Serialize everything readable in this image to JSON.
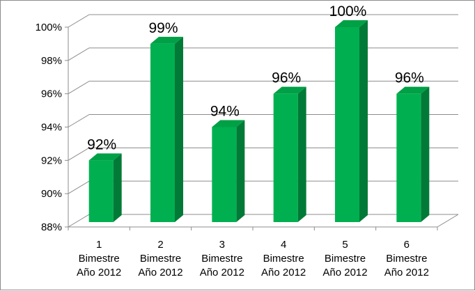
{
  "chart_data": {
    "type": "bar",
    "title": "",
    "xlabel": "",
    "ylabel": "",
    "categories": [
      [
        "1",
        "Bimestre",
        "Año 2012"
      ],
      [
        "2",
        "Bimestre",
        "Año 2012"
      ],
      [
        "3",
        "Bimestre",
        "Año 2012"
      ],
      [
        "4",
        "Bimestre",
        "Año 2012"
      ],
      [
        "5",
        "Bimestre",
        "Año 2012"
      ],
      [
        "6",
        "Bimestre",
        "Año 2012"
      ]
    ],
    "values": [
      92,
      99,
      94,
      96,
      100,
      96
    ],
    "data_labels": [
      "92%",
      "99%",
      "94%",
      "96%",
      "100%",
      "96%"
    ],
    "yticks": [
      "88%",
      "90%",
      "92%",
      "94%",
      "96%",
      "98%",
      "100%"
    ],
    "ylim": [
      88,
      100
    ],
    "grid": true,
    "legend": "none",
    "style": "3d-column",
    "colors": {
      "bar_front": "#00b050",
      "bar_side": "#007a36",
      "bar_top": "#00a046",
      "grid": "#8c8c8c"
    }
  }
}
